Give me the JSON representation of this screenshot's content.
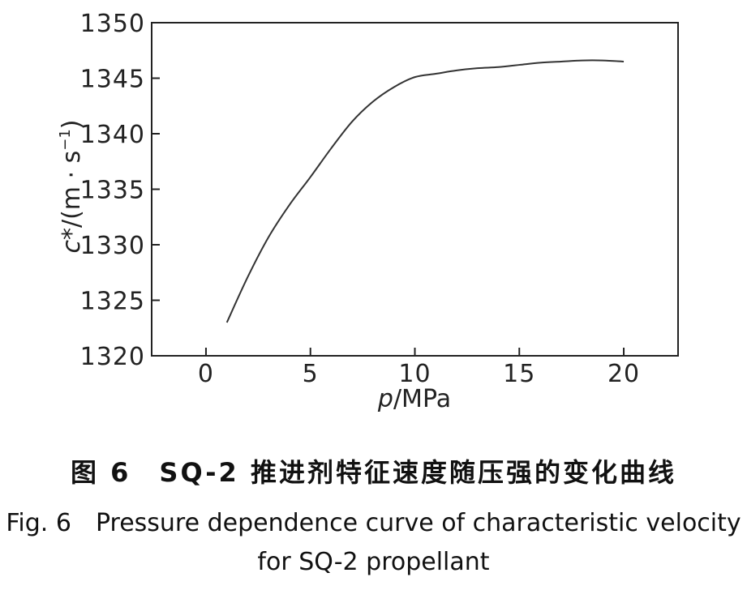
{
  "chart_data": {
    "type": "line",
    "xlabel_italic": "p",
    "xlabel_unit": "/MPa",
    "ylabel_italic": "c",
    "ylabel_rest": "*/(m · s",
    "ylabel_sup": "−1",
    "ylabel_close": ")",
    "xlim": [
      -2.6,
      22.6
    ],
    "ylim": [
      1320,
      1350
    ],
    "xticks": [
      0,
      5,
      10,
      15,
      20
    ],
    "yticks": [
      1320,
      1325,
      1330,
      1335,
      1340,
      1345,
      1350
    ],
    "series": [
      {
        "x": [
          1,
          2,
          3,
          4,
          5,
          6,
          7,
          8,
          9,
          10,
          11,
          12,
          13,
          14,
          15,
          16,
          17,
          18,
          19,
          20
        ],
        "y": [
          1323.0,
          1327.1,
          1330.7,
          1333.6,
          1336.1,
          1338.7,
          1341.1,
          1342.9,
          1344.2,
          1345.1,
          1345.4,
          1345.7,
          1345.9,
          1346.0,
          1346.2,
          1346.4,
          1346.5,
          1346.6,
          1346.6,
          1346.5
        ],
        "color": "#333333"
      }
    ]
  },
  "caption": {
    "cn": "图 6　SQ-2 推进剂特征速度随压强的变化曲线",
    "en_line1": "Fig. 6　Pressure dependence curve of characteristic velocity",
    "en_line2": "for SQ-2 propellant"
  }
}
